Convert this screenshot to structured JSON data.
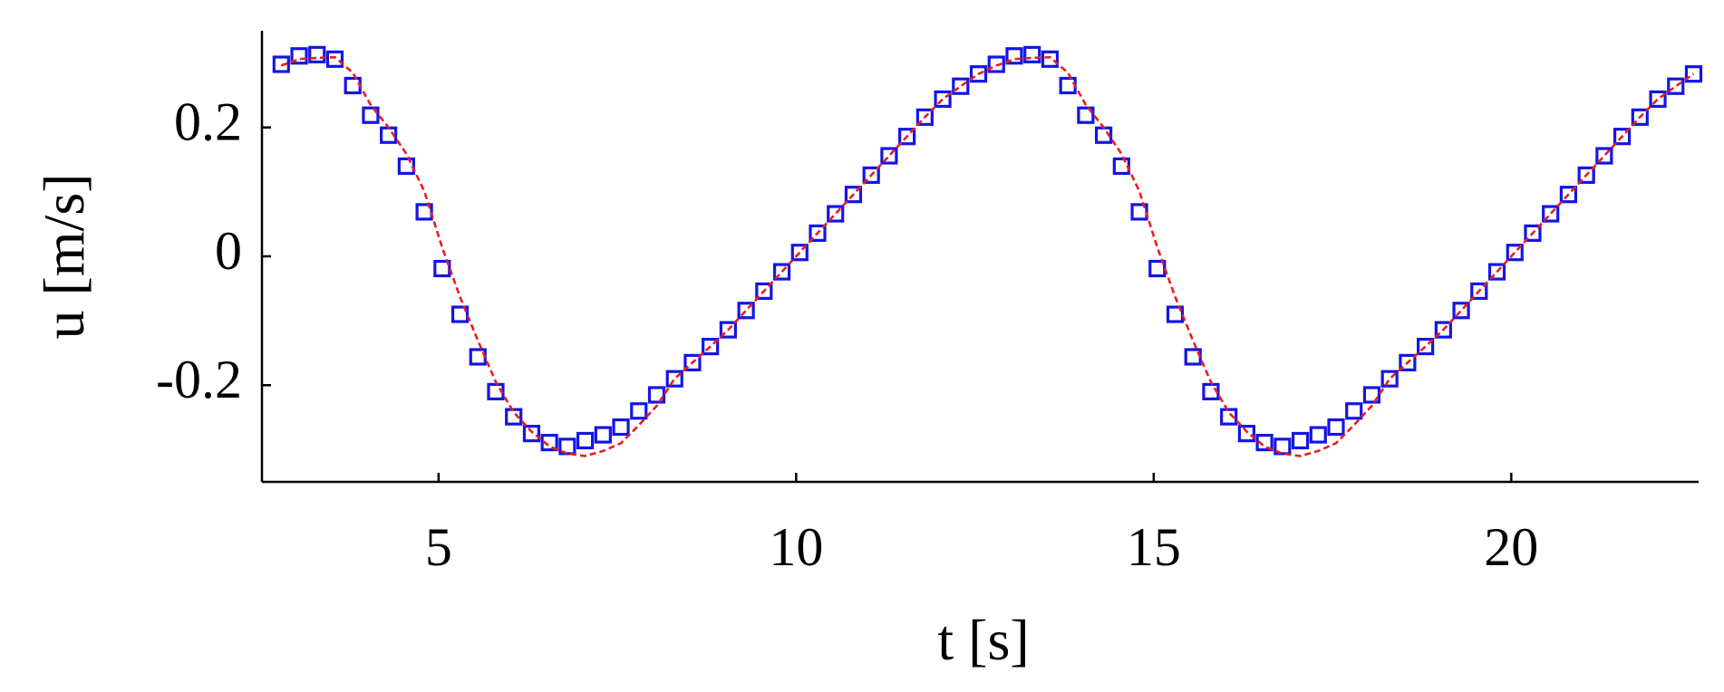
{
  "chart_data": {
    "type": "scatter-line",
    "xlabel": "t [s]",
    "ylabel": "u [m/s]",
    "x": [
      2.8,
      3.05,
      3.3,
      3.55,
      3.8,
      4.05,
      4.3,
      4.55,
      4.8,
      5.05,
      5.3,
      5.55,
      5.8,
      6.05,
      6.3,
      6.55,
      6.8,
      7.05,
      7.3,
      7.55,
      7.8,
      8.05,
      8.3,
      8.55,
      8.8,
      9.05,
      9.3,
      9.55,
      9.8,
      10.05,
      10.3,
      10.55,
      10.8,
      11.05,
      11.3,
      11.55,
      11.8,
      12.05,
      12.3,
      12.55,
      12.8,
      13.05,
      13.3,
      13.55,
      13.8,
      14.05,
      14.3,
      14.55,
      14.8,
      15.05,
      15.3,
      15.55,
      15.8,
      16.05,
      16.3,
      16.55,
      16.8,
      17.05,
      17.3,
      17.55,
      17.8,
      18.05,
      18.3,
      18.55,
      18.8,
      19.05,
      19.3,
      19.55,
      19.8,
      20.05,
      20.3,
      20.55,
      20.8,
      21.05,
      21.3,
      21.55,
      21.8,
      22.05,
      22.3,
      22.55
    ],
    "series": [
      {
        "style": "markers",
        "color": "#1414e6",
        "values": [
          0.298,
          0.311,
          0.313,
          0.306,
          0.265,
          0.219,
          0.188,
          0.14,
          0.069,
          -0.019,
          -0.09,
          -0.156,
          -0.21,
          -0.249,
          -0.275,
          -0.289,
          -0.295,
          -0.286,
          -0.277,
          -0.265,
          -0.24,
          -0.215,
          -0.19,
          -0.165,
          -0.14,
          -0.114,
          -0.084,
          -0.054,
          -0.024,
          0.006,
          0.036,
          0.066,
          0.096,
          0.126,
          0.156,
          0.186,
          0.216,
          0.244,
          0.264,
          0.283,
          0.298,
          0.311,
          0.313,
          0.306,
          0.265,
          0.219,
          0.188,
          0.14,
          0.069,
          -0.019,
          -0.09,
          -0.156,
          -0.21,
          -0.249,
          -0.275,
          -0.289,
          -0.295,
          -0.286,
          -0.277,
          -0.265,
          -0.24,
          -0.215,
          -0.19,
          -0.165,
          -0.14,
          -0.114,
          -0.084,
          -0.054,
          -0.024,
          0.006,
          0.036,
          0.066,
          0.096,
          0.126,
          0.156,
          0.186,
          0.216,
          0.244,
          0.264,
          0.283
        ]
      },
      {
        "style": "dashed",
        "color": "#e81e1e",
        "values": [
          0.296,
          0.306,
          0.308,
          0.309,
          0.285,
          0.235,
          0.2,
          0.159,
          0.101,
          0.014,
          -0.063,
          -0.131,
          -0.195,
          -0.242,
          -0.272,
          -0.295,
          -0.306,
          -0.31,
          -0.302,
          -0.29,
          -0.262,
          -0.232,
          -0.19,
          -0.165,
          -0.14,
          -0.114,
          -0.084,
          -0.054,
          -0.024,
          0.006,
          0.036,
          0.066,
          0.096,
          0.126,
          0.156,
          0.186,
          0.216,
          0.244,
          0.264,
          0.283,
          0.296,
          0.306,
          0.308,
          0.309,
          0.285,
          0.235,
          0.2,
          0.159,
          0.101,
          0.014,
          -0.063,
          -0.131,
          -0.195,
          -0.242,
          -0.272,
          -0.295,
          -0.306,
          -0.31,
          -0.302,
          -0.29,
          -0.262,
          -0.232,
          -0.19,
          -0.165,
          -0.14,
          -0.114,
          -0.084,
          -0.054,
          -0.024,
          0.006,
          0.036,
          0.066,
          0.096,
          0.126,
          0.156,
          0.186,
          0.216,
          0.244,
          0.264,
          0.283
        ]
      }
    ],
    "xlim": [
      2.53,
      22.62
    ],
    "xticks": [
      5,
      10,
      15,
      20
    ],
    "ylim": [
      -0.35,
      0.35
    ],
    "yticks": [
      -0.2,
      0,
      0.2
    ]
  }
}
